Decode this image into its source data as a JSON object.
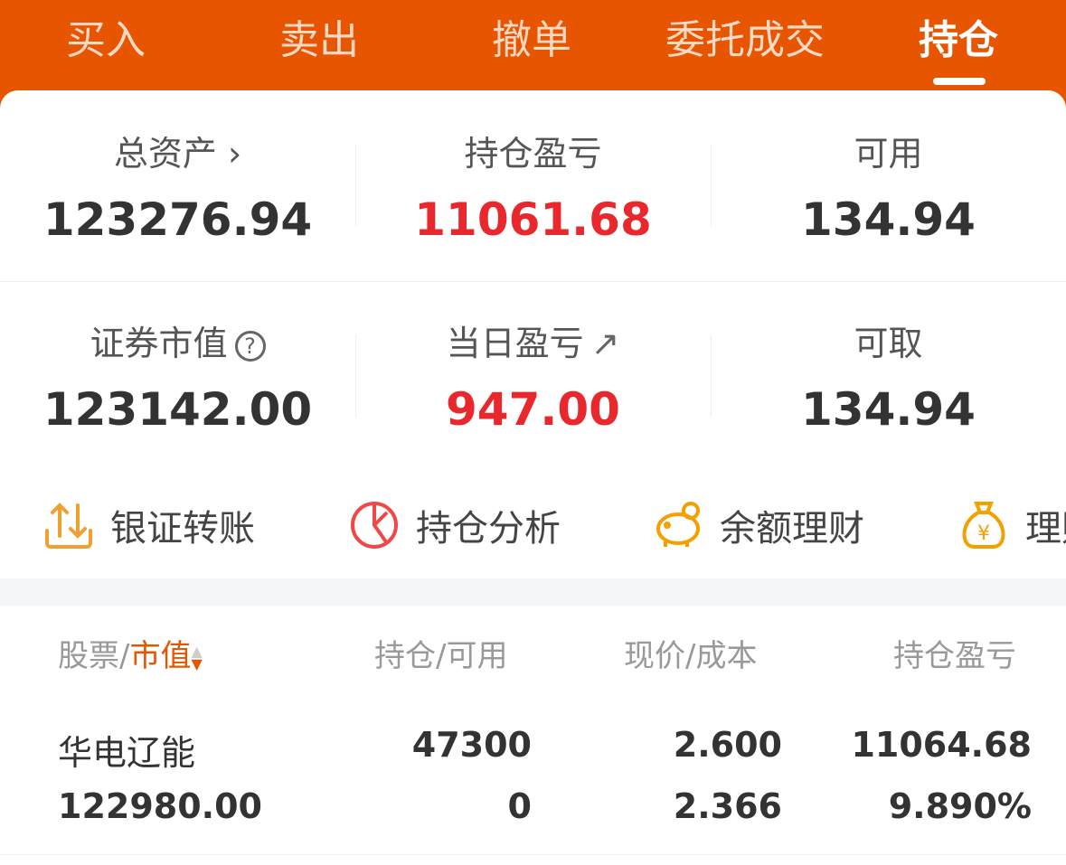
{
  "tabs": [
    {
      "label": "买入"
    },
    {
      "label": "卖出"
    },
    {
      "label": "撤单"
    },
    {
      "label": "委托成交"
    },
    {
      "label": "持仓",
      "active": true
    }
  ],
  "summary": {
    "total_assets": {
      "label": "总资产",
      "value": "123276.94"
    },
    "position_pnl": {
      "label": "持仓盈亏",
      "value": "11061.68"
    },
    "available": {
      "label": "可用",
      "value": "134.94"
    },
    "market_value": {
      "label": "证券市值",
      "value": "123142.00"
    },
    "daily_pnl": {
      "label": "当日盈亏",
      "value": "947.00"
    },
    "withdrawable": {
      "label": "可取",
      "value": "134.94"
    }
  },
  "quick_actions": [
    {
      "label": "银证转账",
      "icon": "transfer-icon"
    },
    {
      "label": "持仓分析",
      "icon": "pie-chart-icon"
    },
    {
      "label": "余额理财",
      "icon": "piggy-bank-icon"
    },
    {
      "label": "理财",
      "icon": "money-bag-icon"
    }
  ],
  "table": {
    "headers": {
      "stock": "股票",
      "sep": "/",
      "market_value": "市值",
      "position": "持仓/可用",
      "price": "现价/成本",
      "pnl": "持仓盈亏"
    },
    "rows": [
      {
        "name": "华电辽能",
        "market_value": "122980.00",
        "position": "47300",
        "available": "0",
        "price": "2.600",
        "cost": "2.366",
        "pnl": "11064.68",
        "pnl_pct": "9.890%"
      }
    ]
  },
  "colors": {
    "brand": "#E85500",
    "profit": "#E8282D"
  }
}
